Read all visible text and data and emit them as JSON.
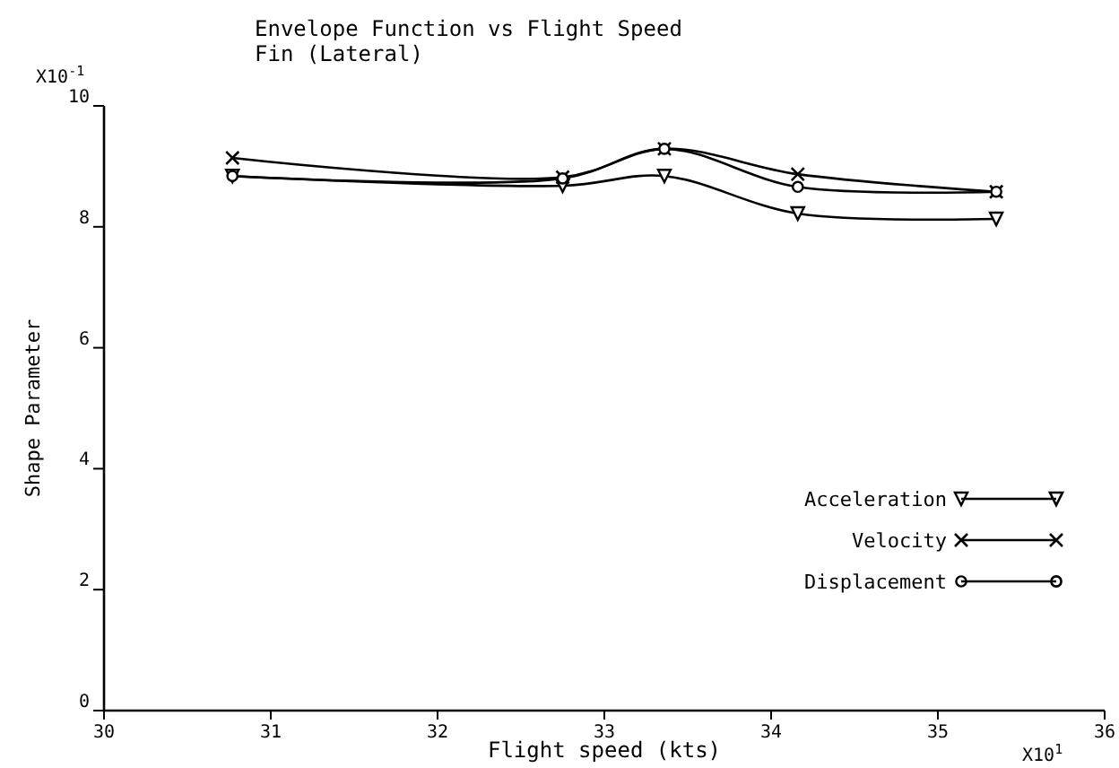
{
  "chart_data": {
    "type": "line",
    "title": "Envelope Function vs Flight Speed",
    "subtitle": "Fin (Lateral)",
    "xlabel": "Flight speed (kts)",
    "ylabel": "Shape Parameter",
    "annotations": [
      "X10$^{-1}$",
      "X10$^{1}$"
    ],
    "x": [
      30.77,
      32.75,
      33.36,
      34.16,
      35.35
    ],
    "series": [
      {
        "name": "Acceleration",
        "color": "#000000",
        "marker": "triangle",
        "values": [
          8.84,
          8.68,
          8.84,
          8.22,
          8.13
        ]
      },
      {
        "name": "Velocity",
        "color": "#000000",
        "marker": "cross",
        "values": [
          9.14,
          8.82,
          9.29,
          8.87,
          8.58
        ]
      },
      {
        "name": "Displacement",
        "color": "#000000",
        "marker": "circle",
        "values": [
          8.84,
          8.8,
          9.29,
          8.66,
          8.58
        ]
      }
    ],
    "xlim": [
      30,
      36
    ],
    "xticks": [
      30,
      31,
      32,
      33,
      34,
      35,
      36
    ],
    "ylim": [
      0,
      10
    ],
    "yticks": [
      0,
      2,
      4,
      6,
      8,
      10
    ],
    "grid": false,
    "legend": "bottom right",
    "line_style": "solid"
  }
}
